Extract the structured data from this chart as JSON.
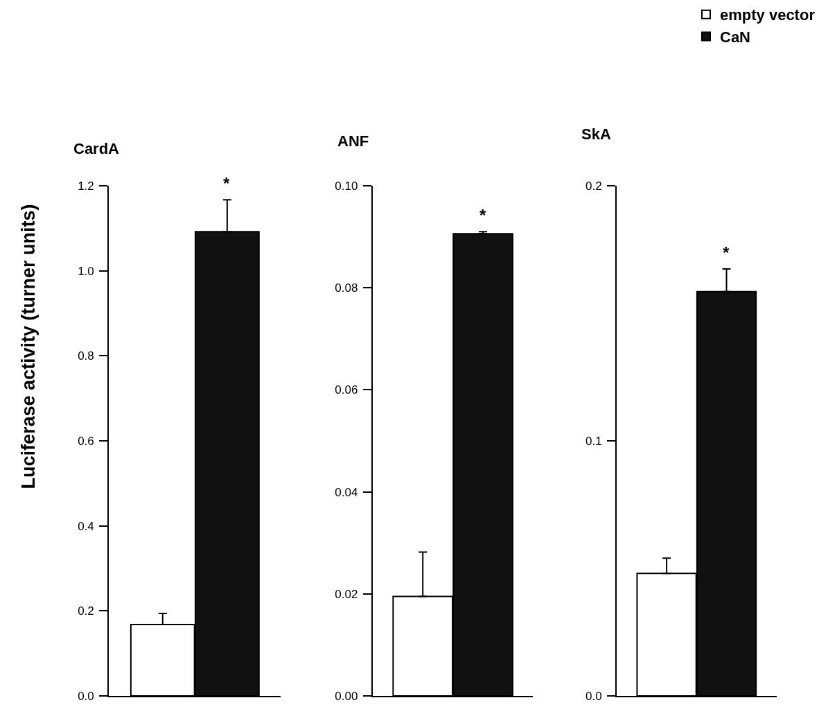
{
  "chart_data": [
    {
      "type": "bar",
      "title": "CardA",
      "ylabel": "Luciferase activity (turner units)",
      "categories": [
        null
      ],
      "ylim": [
        0,
        1.2
      ],
      "yticks": [
        "0.0",
        0.2,
        0.4,
        0.6,
        0.8,
        "1.0",
        1.2
      ],
      "series": [
        {
          "color": "#ffffff",
          "values": [
            0.168
          ],
          "errors": [
            [
              0.168,
              0.194
            ]
          ]
        },
        {
          "color": "#111111",
          "values": [
            1.092
          ],
          "errors": [
            [
              1.092,
              1.167
            ]
          ]
        }
      ],
      "annotations": [
        "*"
      ]
    },
    {
      "type": "bar",
      "title": "ANF",
      "categories": [
        null
      ],
      "ylim": [
        0,
        0.1
      ],
      "yticks": [
        "0.00",
        0.02,
        0.04,
        0.06,
        0.08,
        "0.10"
      ],
      "series": [
        {
          "color": "#ffffff",
          "values": [
            0.0195
          ],
          "errors": [
            [
              0.0195,
              0.0282
            ]
          ]
        },
        {
          "color": "#111111",
          "values": [
            0.0906
          ],
          "errors": [
            [
              0.0906,
              0.091
            ]
          ]
        }
      ],
      "annotations": [
        "*"
      ]
    },
    {
      "type": "bar",
      "title": "SkA",
      "categories": [
        null
      ],
      "ylim": [
        0,
        0.2
      ],
      "yticks": [
        "0.0",
        0.1,
        0.2
      ],
      "series": [
        {
          "name": "empty vector",
          "color": "#ffffff",
          "values": [
            0.048
          ],
          "errors": [
            [
              0.048,
              0.054
            ]
          ]
        },
        {
          "name": "CaN",
          "color": "#111111",
          "values": [
            0.1585
          ],
          "errors": [
            [
              0.1585,
              0.1674
            ]
          ]
        }
      ],
      "annotations": [
        "*"
      ],
      "legend": "top right"
    }
  ]
}
